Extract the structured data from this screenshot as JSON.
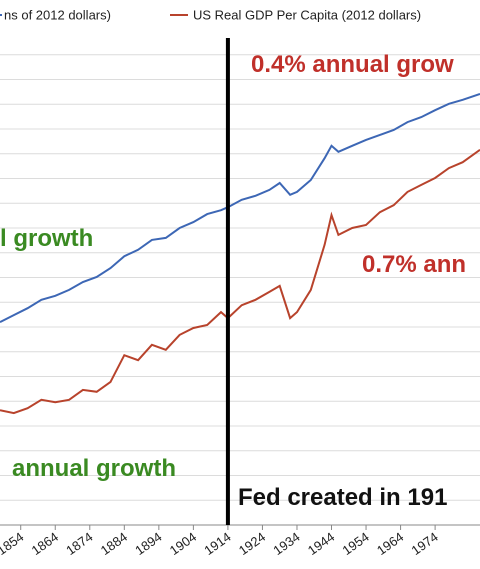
{
  "chart_data": {
    "type": "line",
    "series": [
      {
        "name": "ns of 2012 dollars)",
        "color": "#3d67b5",
        "x": [
          1848,
          1852,
          1856,
          1860,
          1864,
          1868,
          1872,
          1876,
          1880,
          1884,
          1888,
          1892,
          1896,
          1900,
          1904,
          1908,
          1912,
          1914,
          1918,
          1922,
          1926,
          1929,
          1932,
          1934,
          1938,
          1942,
          1944,
          1946,
          1950,
          1954,
          1958,
          1962,
          1966,
          1970,
          1974,
          1978,
          1982,
          1987
        ],
        "values": [
          41.0,
          42.4,
          43.8,
          45.5,
          46.3,
          47.5,
          49.1,
          50.1,
          51.9,
          54.3,
          55.6,
          57.6,
          58.0,
          60.0,
          61.2,
          62.8,
          63.6,
          64.2,
          65.7,
          66.5,
          67.7,
          69.1,
          66.7,
          67.3,
          69.7,
          74.1,
          76.6,
          75.4,
          76.6,
          77.8,
          78.8,
          79.8,
          81.4,
          82.4,
          83.8,
          85.1,
          85.9,
          87.1
        ]
      },
      {
        "name": "US Real GDP Per Capita (2012 dollars)",
        "color": "#b8432c",
        "x": [
          1848,
          1852,
          1856,
          1860,
          1864,
          1868,
          1872,
          1876,
          1880,
          1884,
          1888,
          1892,
          1896,
          1900,
          1904,
          1908,
          1912,
          1914,
          1918,
          1922,
          1926,
          1929,
          1932,
          1934,
          1938,
          1942,
          1944,
          1946,
          1950,
          1954,
          1958,
          1962,
          1966,
          1970,
          1974,
          1978,
          1982,
          1987
        ],
        "values": [
          23.2,
          22.6,
          23.6,
          25.3,
          24.8,
          25.3,
          27.3,
          26.9,
          28.9,
          34.3,
          33.3,
          36.4,
          35.4,
          38.4,
          39.8,
          40.4,
          43.0,
          41.8,
          44.4,
          45.5,
          47.1,
          48.3,
          41.8,
          43.0,
          47.5,
          56.6,
          62.6,
          58.6,
          60.0,
          60.6,
          63.2,
          64.6,
          67.3,
          68.7,
          70.1,
          72.1,
          73.3,
          75.8
        ]
      }
    ],
    "xlim": [
      1848,
      1987
    ],
    "xticks": [
      1854,
      1864,
      1874,
      1884,
      1894,
      1904,
      1914,
      1924,
      1934,
      1944,
      1954,
      1964,
      1974
    ],
    "ylim": [
      0,
      100
    ],
    "ygrid": [
      5,
      10,
      15,
      20,
      25,
      30,
      35,
      40,
      45,
      50,
      55,
      60,
      65,
      70,
      75,
      80,
      85,
      90,
      95
    ],
    "event_x": 1914,
    "annotations": [
      {
        "text": "0.4% annual grow",
        "color": "#c0302a"
      },
      {
        "text": "l growth",
        "color": "#3a8a22"
      },
      {
        "text": "0.7% ann",
        "color": "#c0302a"
      },
      {
        "text": "annual growth",
        "color": "#3a8a22"
      },
      {
        "text": "Fed created in 191",
        "color": "#111111"
      }
    ]
  }
}
